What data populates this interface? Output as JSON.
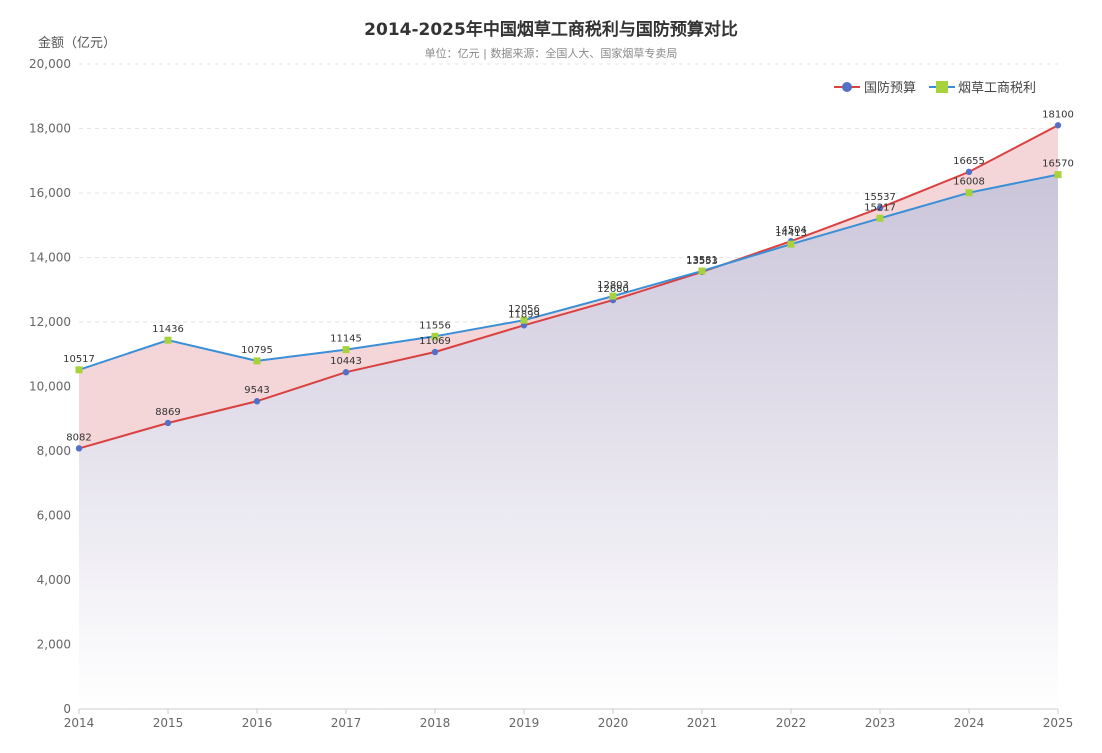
{
  "chart_data": {
    "type": "line",
    "title": "2014-2025年中国烟草工商税利与国防预算对比",
    "subtitle": "单位：亿元 | 数据来源：全国人大、国家烟草专卖局",
    "ylabel": "金额（亿元）",
    "xlabel": "",
    "ylim": [
      0,
      20000
    ],
    "yticks": [
      "0",
      "2,000",
      "4,000",
      "6,000",
      "8,000",
      "10,000",
      "12,000",
      "14,000",
      "16,000",
      "18,000",
      "20,000"
    ],
    "categories": [
      "2014",
      "2015",
      "2016",
      "2017",
      "2018",
      "2019",
      "2020",
      "2021",
      "2022",
      "2023",
      "2024",
      "2025"
    ],
    "legend_position": "top-right",
    "series": [
      {
        "name": "国防预算",
        "color": "#d94141",
        "marker_color": "#5470c6",
        "marker": "circle",
        "values": [
          8082,
          8869,
          9543,
          10443,
          11069,
          11899,
          12680,
          13553,
          14504,
          15537,
          16655,
          18100
        ],
        "labels": [
          "8082",
          "8869",
          "9543",
          "10443",
          "11069",
          "11899",
          "12680",
          "13553",
          "14504",
          "15537",
          "16655",
          "18100"
        ]
      },
      {
        "name": "烟草工商税利",
        "color": "#3a8fd6",
        "marker_color": "#a8d13e",
        "marker": "square",
        "values": [
          10517,
          11436,
          10795,
          11145,
          11556,
          12056,
          12803,
          13581,
          14413,
          15217,
          16008,
          16570
        ],
        "labels": [
          "10517",
          "11436",
          "10795",
          "11145",
          "11556",
          "12056",
          "12803",
          "13581",
          "14413",
          "15217",
          "16008",
          "16570"
        ]
      }
    ],
    "colors": {
      "tobacco_above_fill": "#dcecf9",
      "defense_above_fill": "#f7d1d1",
      "base_fill_top": "#c8c2d8",
      "gridline": "#e6e6e6",
      "axis": "#cccccc"
    }
  }
}
